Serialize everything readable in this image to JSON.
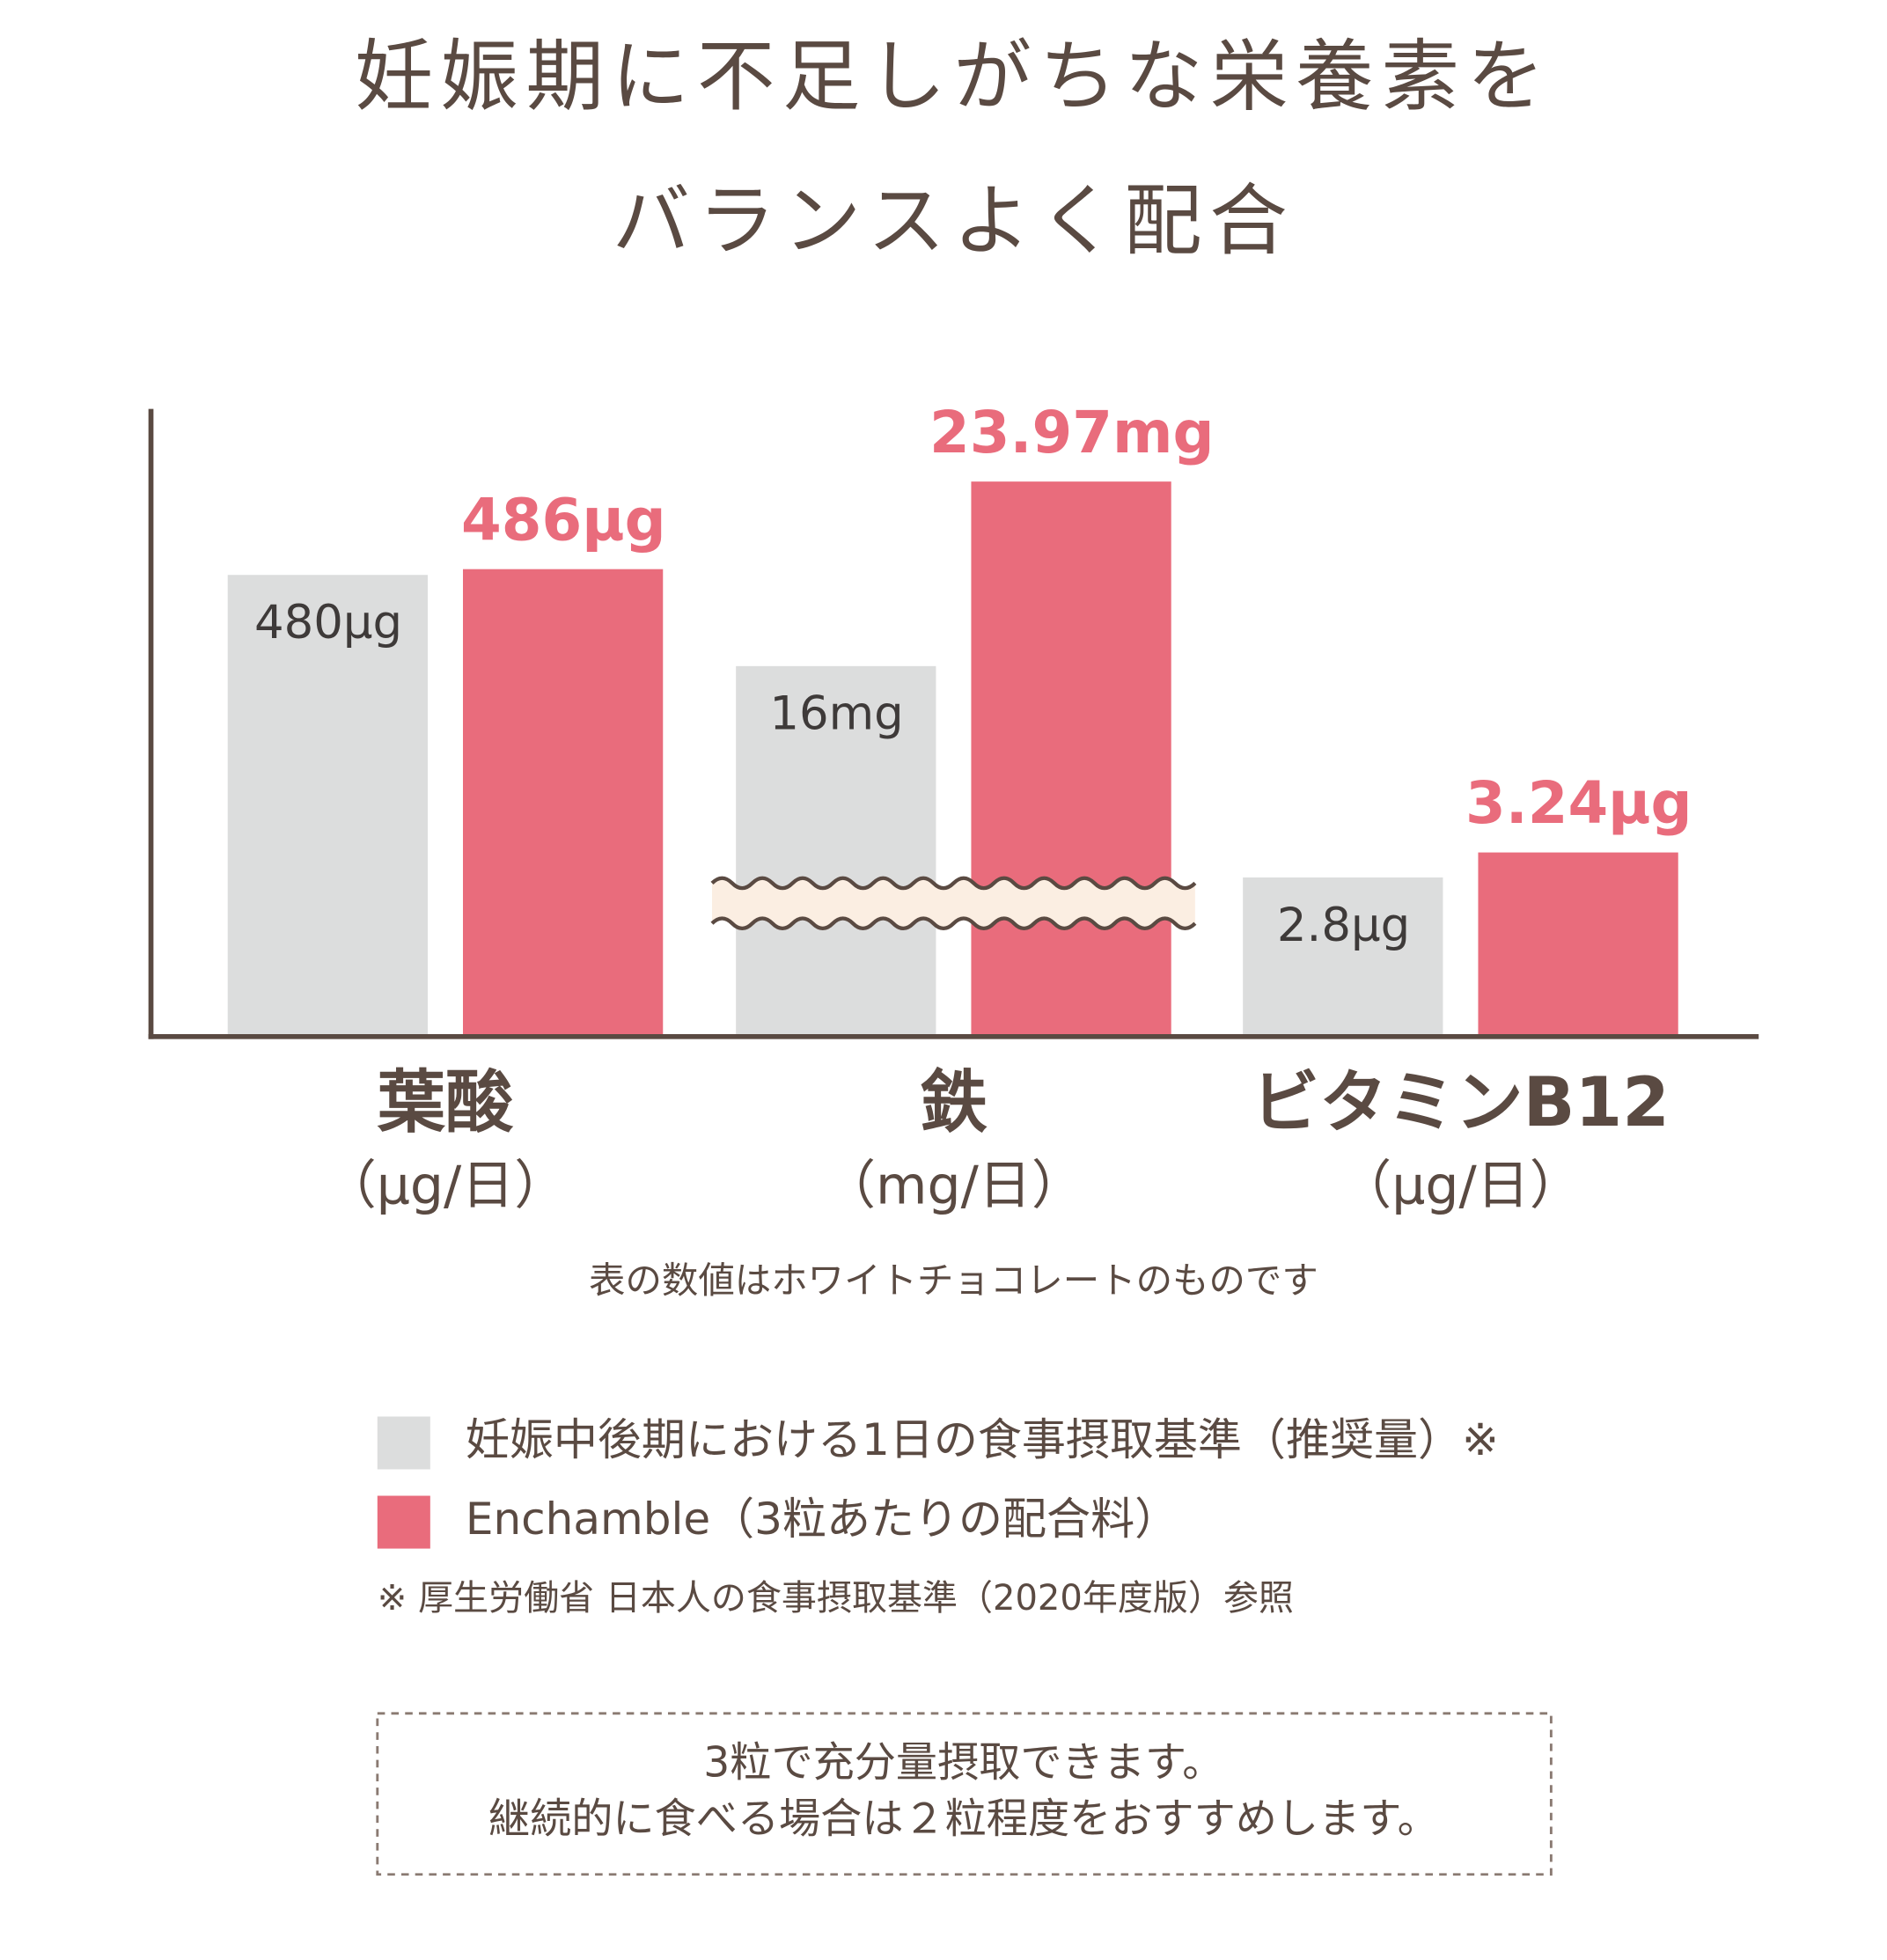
{
  "chart_data": {
    "type": "bar",
    "title": [
      "妊娠期に不足しがちな栄養素を",
      "バランスよく配合"
    ],
    "categories": [
      "葉酸",
      "鉄",
      "ビタミンB12"
    ],
    "units": [
      "（μg/日）",
      "（mg/日）",
      "（μg/日）"
    ],
    "ylims": [
      [
        0,
        650
      ],
      [
        0,
        27
      ],
      [
        0,
        11
      ]
    ],
    "axis_break": [
      1
    ],
    "series": [
      {
        "name": "妊娠中後期における1日の食事摂取基準（推奨量）※",
        "color": "#dcdddd",
        "values": [
          480,
          16,
          2.8
        ],
        "value_labels": [
          "480μg",
          "16mg",
          "2.8μg"
        ]
      },
      {
        "name": "Enchamble（3粒あたりの配合料）",
        "color": "#e96c7c",
        "values": [
          486,
          23.97,
          3.24
        ],
        "value_labels": [
          "486μg",
          "23.97mg",
          "3.24μg"
        ]
      }
    ],
    "note": "表の数値はホワイトチョコレートのものです",
    "source": "※ 厚生労働省 日本人の食事摂取基準（2020年度版）参照",
    "recommendation": [
      "3粒で充分量摂取できます。",
      "継続的に食べる場合は２粒程度をおすすめします。"
    ]
  }
}
